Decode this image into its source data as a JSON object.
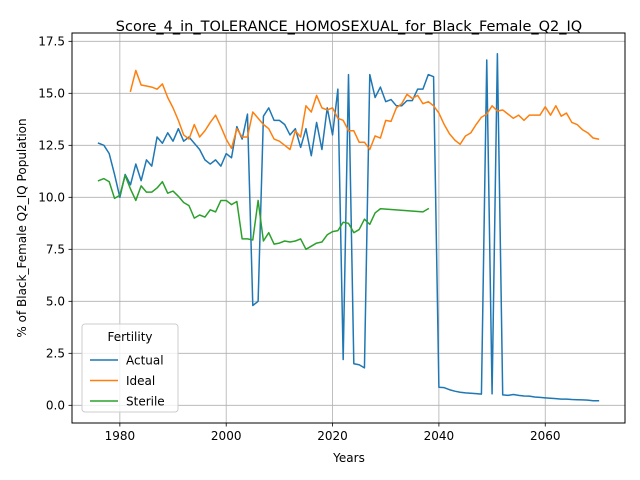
{
  "chart_data": {
    "type": "line",
    "title": "Score_4_in_TOLERANCE_HOMOSEXUAL_for_Black_Female_Q2_IQ",
    "xlabel": "Years",
    "ylabel": "% of Black_Female Q2_IQ Population",
    "xlim": [
      1971,
      2075
    ],
    "ylim": [
      -0.85,
      17.9
    ],
    "xticks": [
      1980,
      2000,
      2020,
      2040,
      2060
    ],
    "xtick_labels": [
      "1980",
      "2000",
      "2020",
      "2040",
      "2060"
    ],
    "yticks": [
      0.0,
      2.5,
      5.0,
      7.5,
      10.0,
      12.5,
      15.0,
      17.5
    ],
    "ytick_labels": [
      "0.0",
      "2.5",
      "5.0",
      "7.5",
      "10.0",
      "12.5",
      "15.0",
      "17.5"
    ],
    "grid": true,
    "legend": {
      "title": "Fertility",
      "placement": "lower-left"
    },
    "series": [
      {
        "name": "Actual",
        "color": "#1f77b4",
        "x": [
          1976,
          1977,
          1978,
          1979,
          1980,
          1981,
          1982,
          1983,
          1984,
          1985,
          1986,
          1987,
          1988,
          1989,
          1990,
          1991,
          1992,
          1993,
          1994,
          1995,
          1996,
          1997,
          1998,
          1999,
          2000,
          2001,
          2002,
          2003,
          2004,
          2005,
          2006,
          2007,
          2008,
          2009,
          2010,
          2011,
          2012,
          2013,
          2014,
          2015,
          2016,
          2017,
          2018,
          2019,
          2020,
          2021,
          2022,
          2023,
          2024,
          2025,
          2026,
          2027,
          2028,
          2029,
          2030,
          2031,
          2032,
          2033,
          2034,
          2035,
          2036,
          2037,
          2038,
          2039,
          2040,
          2041,
          2042,
          2043,
          2044,
          2045,
          2046,
          2047,
          2048,
          2049,
          2050,
          2051,
          2052,
          2053,
          2054,
          2055,
          2056,
          2057,
          2058,
          2059,
          2060,
          2061,
          2062,
          2063,
          2064,
          2065,
          2066,
          2067,
          2068,
          2069,
          2070
        ],
        "values": [
          12.6,
          12.5,
          12.1,
          11.1,
          10.0,
          11.1,
          10.6,
          11.6,
          10.8,
          11.8,
          11.5,
          12.9,
          12.6,
          13.1,
          12.7,
          13.3,
          12.7,
          12.9,
          12.6,
          12.3,
          11.8,
          11.6,
          11.8,
          11.5,
          12.1,
          11.9,
          13.4,
          12.8,
          14.0,
          4.8,
          5.0,
          13.9,
          14.3,
          13.7,
          13.7,
          13.5,
          13.0,
          13.3,
          12.4,
          13.3,
          12.0,
          13.6,
          12.3,
          14.3,
          13.0,
          15.2,
          2.2,
          15.9,
          2.0,
          1.95,
          1.8,
          15.9,
          14.8,
          15.3,
          14.6,
          14.7,
          14.4,
          14.4,
          14.65,
          14.65,
          15.2,
          15.2,
          15.9,
          15.8,
          0.87,
          0.85,
          0.75,
          0.68,
          0.63,
          0.6,
          0.58,
          0.56,
          0.54,
          16.6,
          0.55,
          16.9,
          0.5,
          0.48,
          0.52,
          0.48,
          0.45,
          0.44,
          0.4,
          0.38,
          0.36,
          0.34,
          0.32,
          0.3,
          0.3,
          0.28,
          0.27,
          0.26,
          0.25,
          0.22,
          0.22
        ]
      },
      {
        "name": "Ideal",
        "color": "#ff7f0e",
        "x": [
          1982,
          1983,
          1984,
          1985,
          1986,
          1987,
          1988,
          1989,
          1990,
          1991,
          1992,
          1993,
          1994,
          1995,
          1996,
          1997,
          1998,
          1999,
          2000,
          2001,
          2002,
          2003,
          2004,
          2005,
          2006,
          2007,
          2008,
          2009,
          2010,
          2011,
          2012,
          2013,
          2014,
          2015,
          2016,
          2017,
          2018,
          2019,
          2020,
          2021,
          2022,
          2023,
          2024,
          2025,
          2026,
          2027,
          2028,
          2029,
          2030,
          2031,
          2032,
          2033,
          2034,
          2035,
          2036,
          2037,
          2038,
          2039,
          2040,
          2041,
          2042,
          2043,
          2044,
          2045,
          2046,
          2047,
          2048,
          2049,
          2050,
          2051,
          2052,
          2053,
          2054,
          2055,
          2056,
          2057,
          2058,
          2059,
          2060,
          2061,
          2062,
          2063,
          2064,
          2065,
          2066,
          2067,
          2068,
          2069,
          2070
        ],
        "values": [
          15.1,
          16.1,
          15.4,
          15.35,
          15.3,
          15.2,
          15.45,
          14.8,
          14.3,
          13.7,
          13.0,
          12.8,
          13.5,
          12.9,
          13.2,
          13.6,
          13.95,
          13.4,
          12.8,
          12.35,
          13.3,
          12.9,
          12.9,
          14.1,
          13.8,
          13.5,
          13.3,
          12.8,
          12.7,
          12.5,
          12.3,
          13.2,
          12.9,
          14.4,
          14.1,
          14.9,
          14.3,
          14.2,
          14.3,
          13.8,
          13.7,
          13.2,
          13.2,
          12.65,
          12.65,
          12.3,
          12.95,
          12.85,
          13.7,
          13.65,
          14.3,
          14.5,
          14.95,
          14.75,
          14.9,
          14.5,
          14.6,
          14.4,
          14.05,
          13.5,
          13.05,
          12.75,
          12.55,
          12.95,
          13.1,
          13.5,
          13.85,
          14.0,
          14.4,
          14.15,
          14.2,
          14.0,
          13.8,
          13.95,
          13.7,
          13.95,
          13.95,
          13.95,
          14.35,
          13.95,
          14.4,
          13.9,
          14.05,
          13.6,
          13.5,
          13.25,
          13.1,
          12.85,
          12.8
        ]
      },
      {
        "name": "Sterile",
        "color": "#2ca02c",
        "x": [
          1976,
          1977,
          1978,
          1979,
          1980,
          1981,
          1982,
          1983,
          1984,
          1985,
          1986,
          1987,
          1988,
          1989,
          1990,
          1991,
          1992,
          1993,
          1994,
          1995,
          1996,
          1997,
          1998,
          1999,
          2000,
          2001,
          2002,
          2003,
          2004,
          2005,
          2006,
          2007,
          2008,
          2009,
          2010,
          2011,
          2012,
          2013,
          2014,
          2015,
          2016,
          2017,
          2018,
          2019,
          2020,
          2021,
          2022,
          2023,
          2024,
          2025,
          2026,
          2027,
          2028,
          2029,
          2037,
          2038
        ],
        "values": [
          10.8,
          10.9,
          10.75,
          9.95,
          10.1,
          11.05,
          10.4,
          9.85,
          10.55,
          10.25,
          10.25,
          10.45,
          10.75,
          10.2,
          10.3,
          10.05,
          9.75,
          9.6,
          9.0,
          9.15,
          9.05,
          9.4,
          9.3,
          9.85,
          9.85,
          9.65,
          9.8,
          8.0,
          8.0,
          7.95,
          9.85,
          7.9,
          8.3,
          7.75,
          7.8,
          7.9,
          7.85,
          7.9,
          8.0,
          7.5,
          7.65,
          7.8,
          7.85,
          8.2,
          8.35,
          8.4,
          8.8,
          8.75,
          8.3,
          8.45,
          8.95,
          8.7,
          9.25,
          9.45,
          9.3,
          9.45
        ]
      }
    ]
  }
}
